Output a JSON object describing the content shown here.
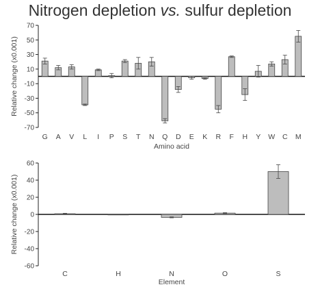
{
  "title": {
    "part1": "Nitrogen depletion ",
    "part2": "vs.",
    "part3": " sulfur depletion"
  },
  "chart_data": [
    {
      "type": "bar",
      "xlabel": "Amino acid",
      "ylabel": "Relative change (x0.001)",
      "ylim": [
        -70,
        70
      ],
      "yticks": [
        70,
        50,
        30,
        10,
        -10,
        -30,
        -50,
        -70
      ],
      "grid": false,
      "categories": [
        "G",
        "A",
        "V",
        "L",
        "I",
        "P",
        "S",
        "T",
        "N",
        "Q",
        "D",
        "E",
        "K",
        "R",
        "F",
        "H",
        "Y",
        "W",
        "C",
        "M"
      ],
      "values": [
        21,
        12,
        13,
        -39,
        9,
        1,
        21,
        18,
        20,
        -61,
        -18,
        -2,
        -3,
        -45,
        27,
        -25,
        7,
        17,
        23,
        55
      ],
      "errors": [
        4,
        3,
        3,
        1,
        1,
        3,
        2,
        8,
        6,
        3,
        4,
        2,
        1,
        5,
        1,
        8,
        8,
        3,
        6,
        8
      ]
    },
    {
      "type": "bar",
      "xlabel": "Element",
      "ylabel": "Relative change (x0.001)",
      "ylim": [
        -60,
        60
      ],
      "yticks": [
        60,
        40,
        20,
        0,
        -20,
        -40,
        -60
      ],
      "grid": false,
      "categories": [
        "C",
        "H",
        "N",
        "O",
        "S"
      ],
      "values": [
        0.8,
        0,
        -3.5,
        1.5,
        50
      ],
      "errors": [
        0.5,
        0,
        0.5,
        0.5,
        8
      ]
    }
  ]
}
